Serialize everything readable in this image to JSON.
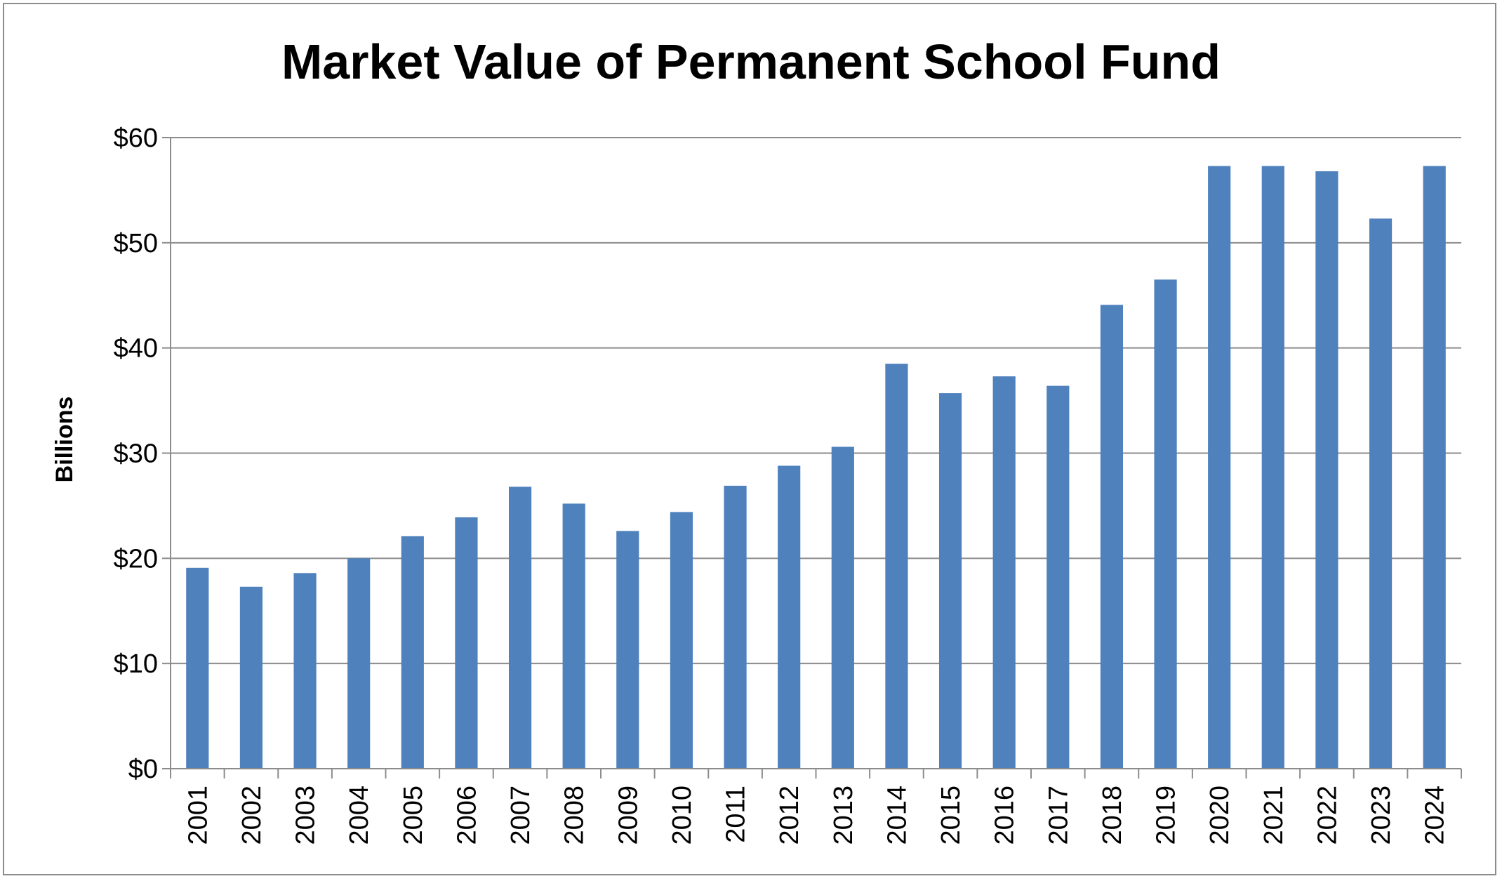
{
  "chart_data": {
    "type": "bar",
    "title": "Market Value of Permanent School Fund",
    "xlabel": "",
    "ylabel": "Billions",
    "ylim": [
      0,
      60
    ],
    "yticks": [
      0,
      10,
      20,
      30,
      40,
      50,
      60
    ],
    "ytick_labels": [
      "$0",
      "$10",
      "$20",
      "$30",
      "$40",
      "$50",
      "$60"
    ],
    "grid": true,
    "legend": "none",
    "bar_color": "#4f81bd",
    "categories": [
      "2001",
      "2002",
      "2003",
      "2004",
      "2005",
      "2006",
      "2007",
      "2008",
      "2009",
      "2010",
      "2011",
      "2012",
      "2013",
      "2014",
      "2015",
      "2016",
      "2017",
      "2018",
      "2019",
      "2020",
      "2021",
      "2022",
      "2023",
      "2024"
    ],
    "values": [
      19.1,
      17.3,
      18.6,
      20.0,
      22.1,
      23.9,
      26.8,
      25.2,
      22.6,
      24.4,
      26.9,
      28.8,
      30.6,
      38.5,
      35.7,
      37.3,
      36.4,
      44.1,
      46.5,
      57.3,
      57.3,
      56.8,
      52.3,
      57.3
    ]
  }
}
